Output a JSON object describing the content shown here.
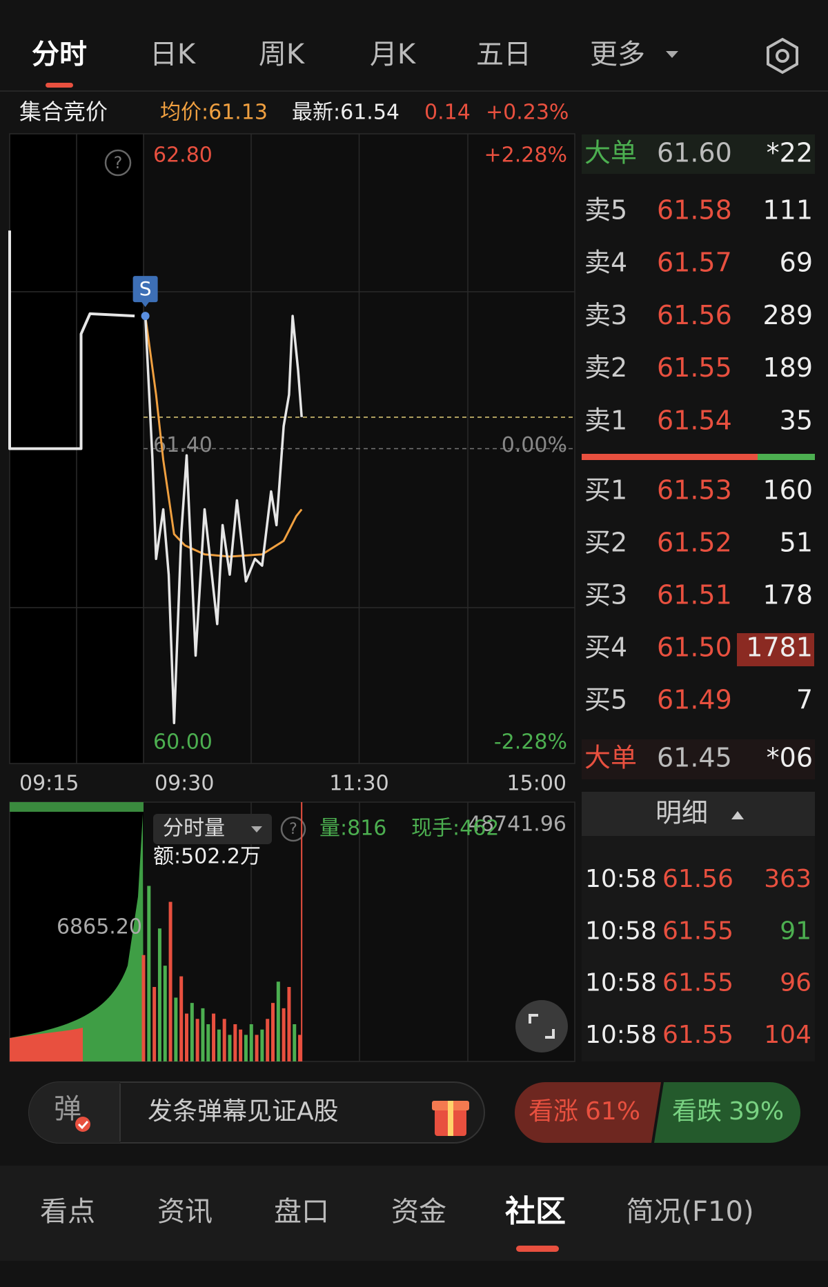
{
  "tabs": [
    "分时",
    "日K",
    "周K",
    "月K",
    "五日",
    "更多"
  ],
  "quote": {
    "label": "集合竞价",
    "avg": "均价:61.13",
    "latest": "最新:61.54",
    "change": "0.14",
    "change_pct": "+0.23%"
  },
  "chart_data": {
    "type": "line",
    "ylim": [
      60,
      62.8
    ],
    "yticks": [
      {
        "value": 62.8,
        "label": "62.80"
      },
      {
        "value": 61.4,
        "label": "61.40"
      },
      {
        "value": 60,
        "label": "60.00"
      }
    ],
    "pct_ticks": [
      "+2.28%",
      "0.00%",
      "-2.28%"
    ],
    "xticks": [
      "09:15",
      "09:30",
      "11:30",
      "15:00"
    ],
    "marker": "S",
    "series": [
      {
        "color": "#e6e6e6",
        "x": [
          "09:31",
          "09:35",
          "09:37",
          "09:41",
          "09:44",
          "09:47",
          "09:51",
          "09:54",
          "09:59",
          "10:04",
          "10:08",
          "10:11",
          "10:14",
          "10:18",
          "10:22",
          "10:27",
          "10:32",
          "10:36",
          "10:41",
          "10:44",
          "10:48",
          "10:51",
          "10:53",
          "10:56",
          "10:58"
        ],
        "values": [
          61.99,
          61.35,
          60.91,
          61.13,
          60.84,
          60.18,
          61.02,
          61.37,
          60.48,
          61.13,
          60.84,
          60.62,
          61.06,
          60.84,
          61.17,
          60.81,
          60.91,
          60.88,
          61.21,
          61.06,
          61.5,
          61.64,
          61.99,
          61.75,
          61.54
        ]
      },
      {
        "color": "#f0a040",
        "x": [
          "09:31",
          "09:37",
          "09:41",
          "09:47",
          "09:53",
          "10:04",
          "10:18",
          "10:36",
          "10:48",
          "10:55",
          "10:58"
        ],
        "values": [
          61.99,
          61.64,
          61.35,
          61.02,
          60.97,
          60.93,
          60.92,
          60.93,
          60.99,
          61.1,
          61.13
        ]
      },
      {
        "color": "#e6e6e6",
        "x": [
          "09:15",
          "09:15",
          "09:23",
          "09:23",
          "09:24",
          "09:29"
        ],
        "values": [
          62.37,
          61.4,
          61.4,
          61.91,
          62.0,
          61.99
        ]
      }
    ]
  },
  "volume_chart": {
    "type": "bar",
    "label": "分时量",
    "amount": "额:502.2万",
    "vol": "量:816",
    "hand": "现手:462",
    "ylim": [
      0,
      48741.96
    ],
    "yticks": [
      {
        "value": 48741.96,
        "label": "48741.96"
      }
    ],
    "auction_label": "6865.20",
    "x": [
      "09:30",
      "09:33",
      "09:36",
      "09:39",
      "09:42",
      "09:45",
      "09:48",
      "09:51",
      "09:54",
      "09:57",
      "10:00",
      "10:03",
      "10:06",
      "10:09",
      "10:12",
      "10:15",
      "10:18",
      "10:21",
      "10:24",
      "10:27",
      "10:30",
      "10:33",
      "10:36",
      "10:39",
      "10:42",
      "10:45",
      "10:48",
      "10:51",
      "10:54",
      "10:57"
    ],
    "values": [
      20000,
      33000,
      14000,
      25000,
      18000,
      30000,
      12000,
      16000,
      9000,
      11000,
      8000,
      10000,
      7000,
      9000,
      6000,
      8000,
      5000,
      7000,
      6000,
      5000,
      7000,
      5000,
      6000,
      8000,
      11000,
      15000,
      10000,
      14000,
      7000,
      5000
    ],
    "colors": [
      "#e8503f",
      "#4caf50",
      "#e8503f",
      "#4caf50",
      "#4caf50",
      "#e8503f",
      "#4caf50",
      "#e8503f",
      "#e8503f",
      "#4caf50",
      "#e8503f",
      "#4caf50",
      "#4caf50",
      "#e8503f",
      "#4caf50",
      "#e8503f",
      "#4caf50",
      "#e8503f",
      "#e8503f",
      "#4caf50",
      "#4caf50",
      "#e8503f",
      "#4caf50",
      "#e8503f",
      "#e8503f",
      "#4caf50",
      "#e8503f",
      "#e8503f",
      "#4caf50",
      "#e8503f"
    ]
  },
  "order_book": {
    "big_sell": {
      "label": "大单",
      "price": "61.60",
      "qty": "*22"
    },
    "asks": [
      {
        "label": "卖5",
        "price": "61.58",
        "qty": 111
      },
      {
        "label": "卖4",
        "price": "61.57",
        "qty": 69
      },
      {
        "label": "卖3",
        "price": "61.56",
        "qty": 289
      },
      {
        "label": "卖2",
        "price": "61.55",
        "qty": 189
      },
      {
        "label": "卖1",
        "price": "61.54",
        "qty": 35
      }
    ],
    "bids": [
      {
        "label": "买1",
        "price": "61.53",
        "qty": 160
      },
      {
        "label": "买2",
        "price": "61.52",
        "qty": 51
      },
      {
        "label": "买3",
        "price": "61.51",
        "qty": 178
      },
      {
        "label": "买4",
        "price": "61.50",
        "qty": 1781
      },
      {
        "label": "买5",
        "price": "61.49",
        "qty": 7
      }
    ],
    "big_buy": {
      "label": "大单",
      "price": "61.45",
      "qty": "*06"
    }
  },
  "details": {
    "title": "明细",
    "trades": [
      {
        "time": "10:58",
        "price": "61.56",
        "qty": 363,
        "color": "#e8503f"
      },
      {
        "time": "10:58",
        "price": "61.55",
        "qty": 91,
        "color": "#4caf50"
      },
      {
        "time": "10:58",
        "price": "61.55",
        "qty": 96,
        "color": "#e8503f"
      },
      {
        "time": "10:58",
        "price": "61.55",
        "qty": 104,
        "color": "#e8503f"
      }
    ]
  },
  "danmu": {
    "icon": "弹",
    "placeholder": "发条弹幕见证A股"
  },
  "sentiment": [
    {
      "label": "看涨",
      "value_label": "61%",
      "value": 61
    },
    {
      "label": "看跌",
      "value_label": "39%",
      "value": 39
    }
  ],
  "bottom_tabs": [
    "看点",
    "资讯",
    "盘口",
    "资金",
    "社区",
    "简况(F10)"
  ]
}
